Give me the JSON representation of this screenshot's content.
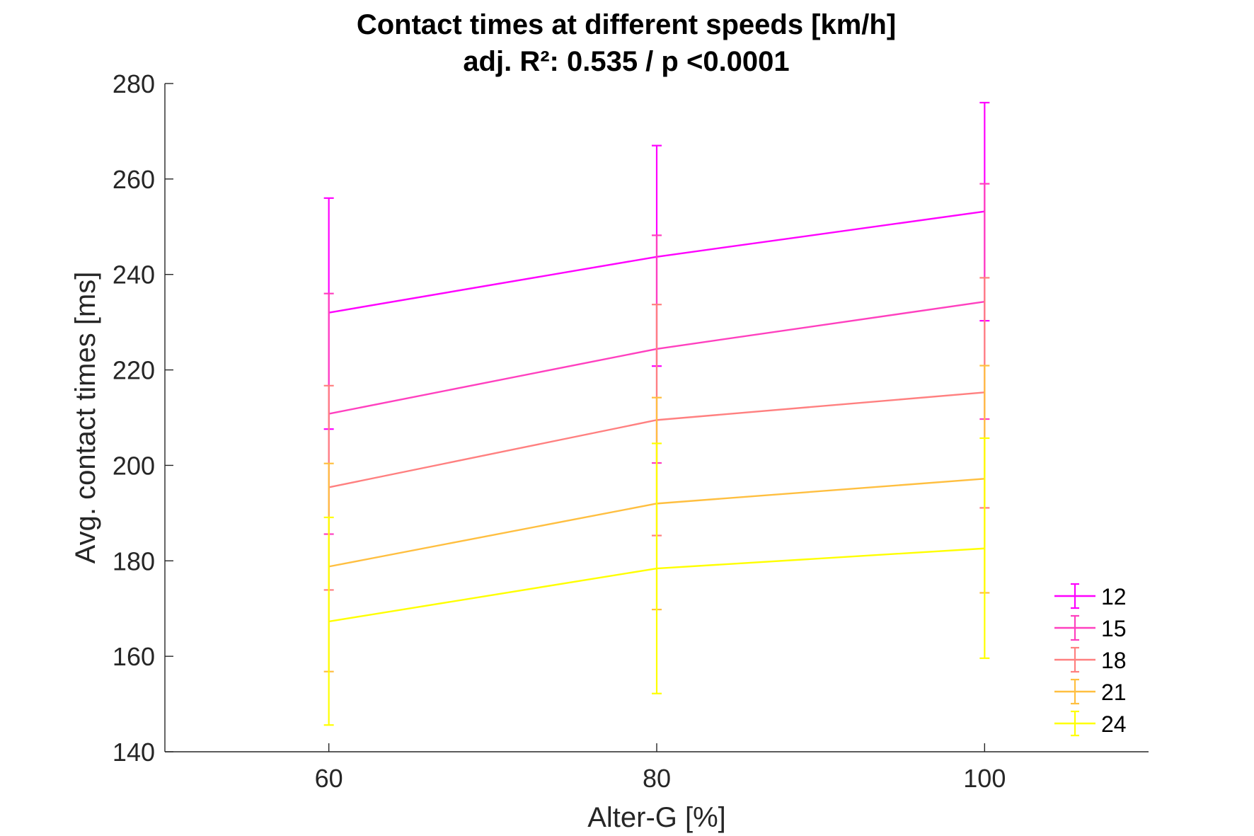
{
  "chart_data": {
    "type": "line",
    "title": "Contact times at different speeds [km/h]",
    "subtitle": "adj. R²: 0.535 / p <0.0001",
    "xlabel": "Alter-G [%]",
    "ylabel": "Avg. contact times [ms]",
    "x": [
      60,
      80,
      100
    ],
    "x_ticks": [
      "60",
      "80",
      "100"
    ],
    "xlim": [
      50,
      110
    ],
    "ylim": [
      140,
      280
    ],
    "y_ticks": [
      "140",
      "160",
      "180",
      "200",
      "220",
      "240",
      "260",
      "280"
    ],
    "grid": false,
    "error_bars": true,
    "legend_position": "bottom-right",
    "series": [
      {
        "name": "12",
        "color": "#ff00ff",
        "values": [
          232,
          243.7,
          253.2
        ],
        "err_low": [
          207.6,
          220.8,
          230.3
        ],
        "err_high": [
          256,
          267,
          276
        ]
      },
      {
        "name": "15",
        "color": "#ff40bf",
        "values": [
          210.8,
          224.4,
          234.3
        ],
        "err_low": [
          185.6,
          200.5,
          209.7
        ],
        "err_high": [
          236,
          248.2,
          259
        ]
      },
      {
        "name": "18",
        "color": "#ff8080",
        "values": [
          195.4,
          209.5,
          215.3
        ],
        "err_low": [
          173.9,
          185.3,
          191.1
        ],
        "err_high": [
          216.7,
          233.7,
          239.3
        ]
      },
      {
        "name": "21",
        "color": "#ffbf40",
        "values": [
          178.8,
          192,
          197.2
        ],
        "err_low": [
          156.8,
          169.8,
          173.3
        ],
        "err_high": [
          200.4,
          214.2,
          220.9
        ]
      },
      {
        "name": "24",
        "color": "#ffff00",
        "values": [
          167.3,
          178.4,
          182.6
        ],
        "err_low": [
          145.6,
          152.2,
          159.6
        ],
        "err_high": [
          189.1,
          204.6,
          205.7
        ]
      }
    ]
  }
}
